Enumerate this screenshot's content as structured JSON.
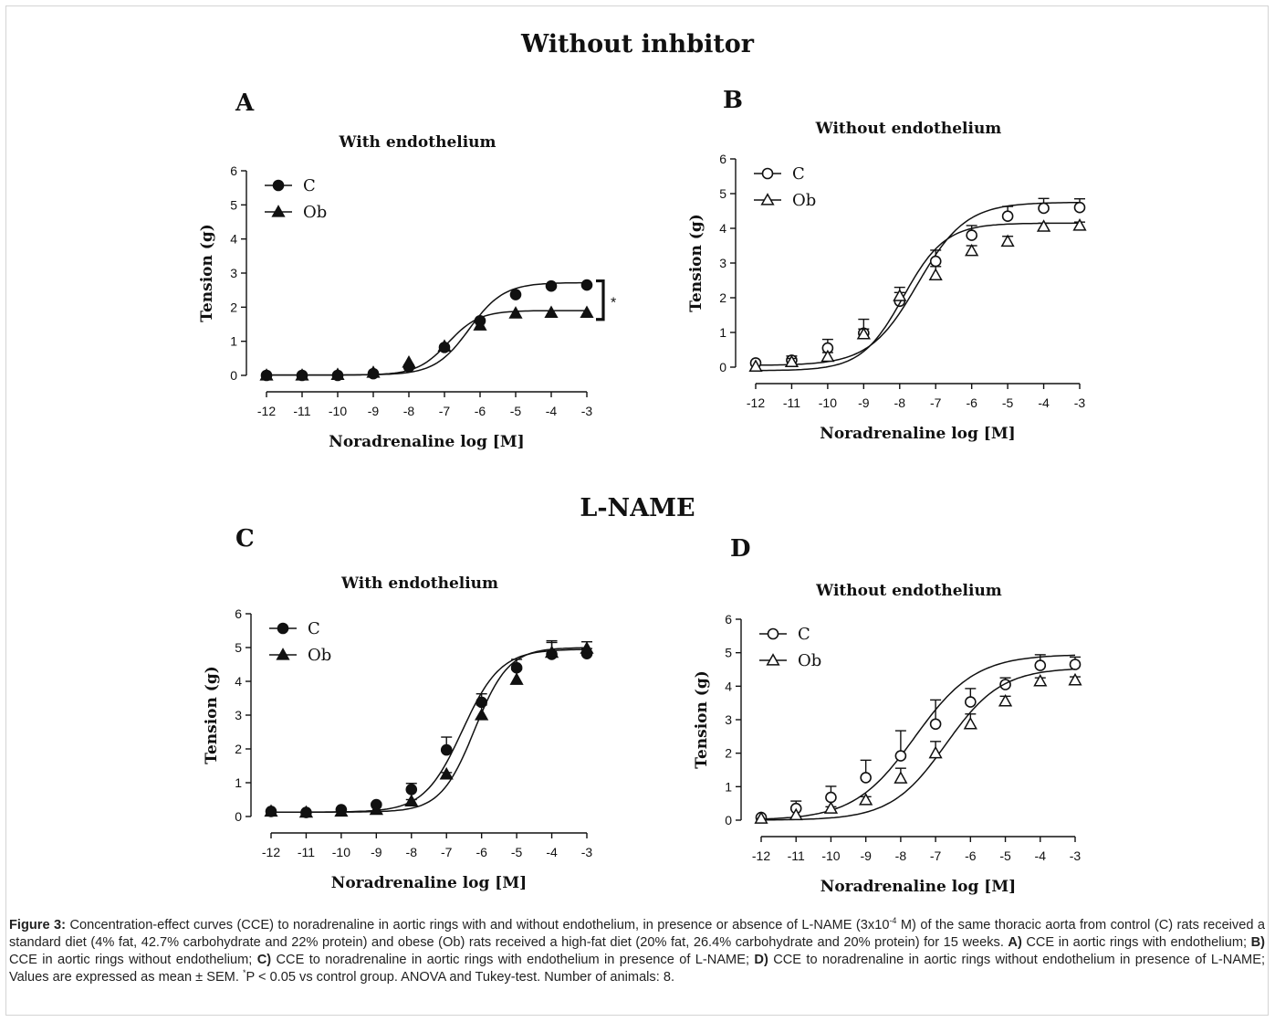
{
  "headings": {
    "top": "Without inhbitor",
    "bottom": "L-NAME"
  },
  "colors": {
    "ink": "#111111",
    "frame": "#d4d4d4",
    "caption": "#222222"
  },
  "chart_data": [
    {
      "panel": "A",
      "type": "line",
      "title": "With endothelium",
      "xlabel": "Noradrenaline log [M]",
      "ylabel": "Tension (g)",
      "xlim": [
        -12,
        -3
      ],
      "ylim": [
        0,
        6
      ],
      "x_ticks": [
        -12,
        -11,
        -10,
        -9,
        -8,
        -7,
        -6,
        -5,
        -4,
        -3
      ],
      "y_ticks": [
        0,
        1,
        2,
        3,
        4,
        5,
        6
      ],
      "legend_position": "top-left",
      "significance_marker": "*",
      "series": [
        {
          "name": "C",
          "marker": "filled-circle",
          "x": [
            -12,
            -11,
            -10,
            -9,
            -8,
            -7,
            -6,
            -5,
            -4,
            -3
          ],
          "y": [
            0,
            0,
            0,
            0.05,
            0.25,
            0.82,
            1.6,
            2.37,
            2.62,
            2.65
          ],
          "err": [
            0,
            0,
            0,
            0,
            0,
            0,
            0,
            0,
            0,
            0
          ],
          "fit": {
            "bottom": 0.01,
            "top": 2.72,
            "ec50": -6.3,
            "hill": 0.9
          }
        },
        {
          "name": "Ob",
          "marker": "filled-triangle",
          "x": [
            -12,
            -11,
            -10,
            -9,
            -8,
            -7,
            -6,
            -5,
            -4,
            -3
          ],
          "y": [
            0,
            0,
            0.02,
            0.08,
            0.38,
            0.85,
            1.47,
            1.82,
            1.84,
            1.84
          ],
          "err": [
            0,
            0,
            0,
            0,
            0,
            0,
            0,
            0,
            0,
            0
          ],
          "fit": {
            "bottom": 0.01,
            "top": 1.9,
            "ec50": -6.9,
            "hill": 1.0
          }
        }
      ]
    },
    {
      "panel": "B",
      "type": "line",
      "title": "Without endothelium",
      "xlabel": "Noradrenaline log [M]",
      "ylabel": "Tension (g)",
      "xlim": [
        -12,
        -3
      ],
      "ylim": [
        0,
        6
      ],
      "x_ticks": [
        -12,
        -11,
        -10,
        -9,
        -8,
        -7,
        -6,
        -5,
        -4,
        -3
      ],
      "y_ticks": [
        0,
        1,
        2,
        3,
        4,
        5,
        6
      ],
      "legend_position": "top-left",
      "series": [
        {
          "name": "C",
          "marker": "open-circle",
          "x": [
            -12,
            -11,
            -10,
            -9,
            -8,
            -7,
            -6,
            -5,
            -4,
            -3
          ],
          "y": [
            0.12,
            0.2,
            0.55,
            0.98,
            1.9,
            3.05,
            3.8,
            4.35,
            4.58,
            4.6
          ],
          "err": [
            0,
            0.12,
            0.25,
            0.4,
            0.25,
            0.32,
            0.28,
            0.28,
            0.28,
            0.25
          ],
          "fit": {
            "bottom": 0.05,
            "top": 4.75,
            "ec50": -7.5,
            "hill": 0.65
          }
        },
        {
          "name": "Ob",
          "marker": "open-triangle",
          "x": [
            -12,
            -11,
            -10,
            -9,
            -8,
            -7,
            -6,
            -5,
            -4,
            -3
          ],
          "y": [
            0.02,
            0.15,
            0.3,
            0.95,
            2.05,
            2.65,
            3.35,
            3.62,
            4.05,
            4.08
          ],
          "err": [
            0,
            0.1,
            0.12,
            0.15,
            0.25,
            0.25,
            0.15,
            0.15,
            0.1,
            0.1
          ],
          "fit": {
            "bottom": -0.1,
            "top": 4.15,
            "ec50": -7.9,
            "hill": 0.75
          }
        }
      ]
    },
    {
      "panel": "C",
      "type": "line",
      "title": "With endothelium",
      "xlabel": "Noradrenaline log [M]",
      "ylabel": "Tension (g)",
      "xlim": [
        -12,
        -3
      ],
      "ylim": [
        0,
        6
      ],
      "x_ticks": [
        -12,
        -11,
        -10,
        -9,
        -8,
        -7,
        -6,
        -5,
        -4,
        -3
      ],
      "y_ticks": [
        0,
        1,
        2,
        3,
        4,
        5,
        6
      ],
      "legend_position": "top-left",
      "series": [
        {
          "name": "C",
          "marker": "filled-circle",
          "x": [
            -12,
            -11,
            -10,
            -9,
            -8,
            -7,
            -6,
            -5,
            -4,
            -3
          ],
          "y": [
            0.15,
            0.12,
            0.2,
            0.35,
            0.8,
            1.97,
            3.38,
            4.4,
            4.8,
            4.82
          ],
          "err": [
            0,
            0,
            0,
            0.05,
            0.18,
            0.38,
            0.25,
            0.25,
            0.4,
            0.15
          ],
          "fit": {
            "bottom": 0.13,
            "top": 4.95,
            "ec50": -6.55,
            "hill": 0.8
          }
        },
        {
          "name": "Ob",
          "marker": "filled-triangle",
          "x": [
            -12,
            -11,
            -10,
            -9,
            -8,
            -7,
            -6,
            -5,
            -4,
            -3
          ],
          "y": [
            0.15,
            0.12,
            0.15,
            0.2,
            0.45,
            1.25,
            3.0,
            4.05,
            4.85,
            4.97
          ],
          "err": [
            0,
            0,
            0,
            0,
            0.05,
            0.05,
            0.3,
            0.3,
            0.3,
            0.2
          ],
          "fit": {
            "bottom": 0.13,
            "top": 5.0,
            "ec50": -6.2,
            "hill": 0.9
          }
        }
      ]
    },
    {
      "panel": "D",
      "type": "line",
      "title": "Without endothelium",
      "xlabel": "Noradrenaline log [M]",
      "ylabel": "Tension (g)",
      "xlim": [
        -12,
        -3
      ],
      "ylim": [
        0,
        6
      ],
      "x_ticks": [
        -12,
        -11,
        -10,
        -9,
        -8,
        -7,
        -6,
        -5,
        -4,
        -3
      ],
      "y_ticks": [
        0,
        1,
        2,
        3,
        4,
        5,
        6
      ],
      "legend_position": "top-left",
      "series": [
        {
          "name": "C",
          "marker": "open-circle",
          "x": [
            -12,
            -11,
            -10,
            -9,
            -8,
            -7,
            -6,
            -5,
            -4,
            -3
          ],
          "y": [
            0.08,
            0.35,
            0.68,
            1.27,
            1.92,
            2.87,
            3.53,
            4.05,
            4.62,
            4.65
          ],
          "err": [
            0,
            0.22,
            0.33,
            0.52,
            0.75,
            0.72,
            0.4,
            0.2,
            0.32,
            0.22
          ],
          "fit": {
            "bottom": 0.0,
            "top": 4.95,
            "ec50": -7.6,
            "hill": 0.5
          }
        },
        {
          "name": "Ob",
          "marker": "open-triangle",
          "x": [
            -12,
            -11,
            -10,
            -9,
            -8,
            -7,
            -6,
            -5,
            -4,
            -3
          ],
          "y": [
            0.05,
            0.15,
            0.35,
            0.6,
            1.25,
            2.0,
            2.87,
            3.55,
            4.15,
            4.18
          ],
          "err": [
            0,
            0,
            0.05,
            0.1,
            0.3,
            0.35,
            0.3,
            0.15,
            0.1,
            0.1
          ],
          "fit": {
            "bottom": 0.0,
            "top": 4.55,
            "ec50": -6.7,
            "hill": 0.55
          }
        }
      ]
    }
  ],
  "caption": {
    "label": "Figure 3:",
    "seg1": " Concentration-effect curves (CCE) to noradrenaline in aortic rings with and without endothelium, in presence or absence of L-NAME (3x10",
    "sup1": "-4",
    "seg2": " M) of the same thoracic aorta from control (C) rats received a standard diet (4% fat, 42.7% carbohydrate and 22% protein) and obese (Ob) rats received a high-fat diet (20% fat, 26.4% carbohydrate and 20% protein) for 15 weeks. ",
    "a_label": "A)",
    "a_text": " CCE in aortic rings with endothelium; ",
    "b_label": "B)",
    "b_text": " CCE in aortic rings without endothelium; ",
    "c_label": "C)",
    "c_text": " CCE to noradrenaline in aortic rings with endothelium in presence of L-NAME;  ",
    "d_label": "D)",
    "d_text": " CCE to noradrenaline in aortic rings without endothelium in presence of L-NAME; Values are expressed as mean ± SEM.  ",
    "sup2": "*",
    "tail": "P < 0.05 vs control group. ANOVA and Tukey-test. Number of animals: 8."
  }
}
